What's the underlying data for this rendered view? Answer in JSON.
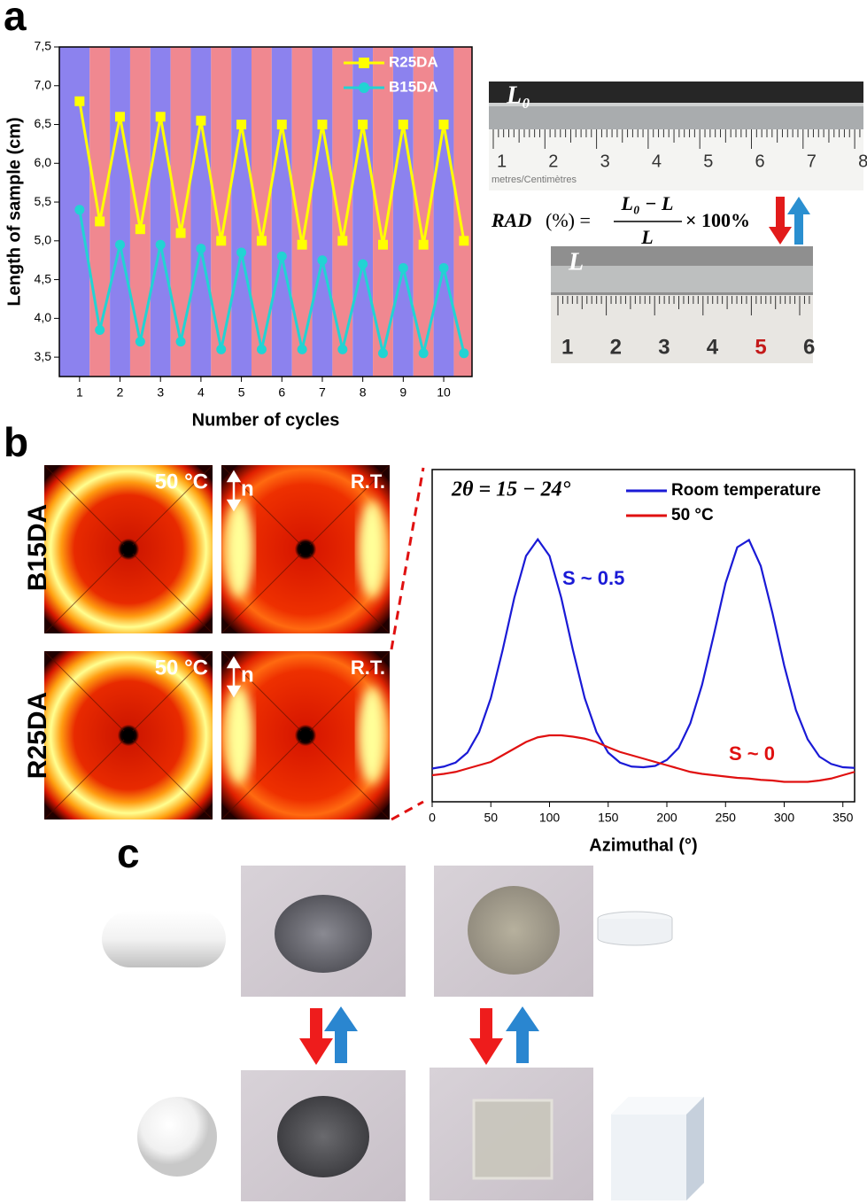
{
  "panels": {
    "a": "a",
    "b": "b",
    "c": "c"
  },
  "ruler_photos": {
    "top_label": "L₀",
    "bottom_label": "L",
    "top_ruler_caption": "metres/Centimètres",
    "top_ruler_numbers": [
      "1",
      "2",
      "3",
      "4",
      "5",
      "6",
      "7",
      "8"
    ],
    "bottom_ruler_numbers": [
      "1",
      "2",
      "3",
      "4",
      "5",
      "6"
    ]
  },
  "formula": {
    "lhs": "RAD",
    "unit": "(%) =",
    "numerator": "L₀ − L",
    "denominator": "L",
    "factor": "× 100%"
  },
  "diffraction": {
    "rows": [
      "B15DA",
      "R25DA"
    ],
    "hot_label": "50 °C",
    "cold_label": "R.T.",
    "director": "n"
  },
  "chart_data": [
    {
      "type": "line",
      "xlabel": "Number of cycles",
      "ylabel": "Length of sample (cm)",
      "x": [
        1,
        1.5,
        2,
        2.5,
        3,
        3.5,
        4,
        4.5,
        5,
        5.5,
        6,
        6.5,
        7,
        7.5,
        8,
        8.5,
        9,
        9.5,
        10,
        10.5
      ],
      "series": [
        {
          "name": "R25DA",
          "color": "#ffff00",
          "marker": "square",
          "values": [
            6.8,
            5.25,
            6.6,
            5.15,
            6.6,
            5.1,
            6.55,
            5.0,
            6.5,
            5.0,
            6.5,
            4.95,
            6.5,
            5.0,
            6.5,
            4.95,
            6.5,
            4.95,
            6.5,
            5.0
          ]
        },
        {
          "name": "B15DA",
          "color": "#22d3d3",
          "marker": "circle",
          "values": [
            5.4,
            3.85,
            4.95,
            3.7,
            4.95,
            3.7,
            4.9,
            3.6,
            4.85,
            3.6,
            4.8,
            3.6,
            4.75,
            3.6,
            4.7,
            3.55,
            4.65,
            3.55,
            4.65,
            3.55
          ]
        }
      ],
      "band_colors": [
        "#8c82ee",
        "#f08890"
      ],
      "xlim": [
        0.5,
        10.7
      ],
      "xticks": [
        1,
        2,
        3,
        4,
        5,
        6,
        7,
        8,
        9,
        10
      ],
      "ylim": [
        3.25,
        7.5
      ],
      "yticks": [
        {
          "value": 3.5,
          "label": "3,5"
        },
        {
          "value": 4,
          "label": "4,0"
        },
        {
          "value": 4.5,
          "label": "4,5"
        },
        {
          "value": 5,
          "label": "5,0"
        },
        {
          "value": 5.5,
          "label": "5,5"
        },
        {
          "value": 6,
          "label": "6,0"
        },
        {
          "value": 6.5,
          "label": "6,5"
        },
        {
          "value": 7,
          "label": "7,0"
        },
        {
          "value": 7.5,
          "label": "7,5"
        }
      ],
      "legend": "upper right"
    },
    {
      "type": "line",
      "title": "2θ = 15 − 24°",
      "xlabel": "Azimuthal (°)",
      "x": [
        0,
        10,
        20,
        30,
        40,
        50,
        60,
        70,
        80,
        90,
        100,
        110,
        120,
        130,
        140,
        150,
        160,
        170,
        180,
        190,
        200,
        210,
        220,
        230,
        240,
        250,
        260,
        270,
        280,
        290,
        300,
        310,
        320,
        330,
        340,
        350,
        360
      ],
      "series": [
        {
          "name": "Room temperature",
          "color": "#1a1ad6",
          "values": [
            0.5,
            0.53,
            0.59,
            0.74,
            1.05,
            1.56,
            2.28,
            3.07,
            3.7,
            3.95,
            3.7,
            3.07,
            2.28,
            1.56,
            1.05,
            0.74,
            0.59,
            0.53,
            0.52,
            0.54,
            0.63,
            0.81,
            1.18,
            1.76,
            2.51,
            3.29,
            3.83,
            3.94,
            3.55,
            2.84,
            2.05,
            1.38,
            0.94,
            0.68,
            0.57,
            0.52,
            0.51
          ]
        },
        {
          "name": "50 °C",
          "color": "#e01010",
          "values": [
            0.4,
            0.42,
            0.45,
            0.5,
            0.55,
            0.6,
            0.7,
            0.8,
            0.9,
            0.97,
            1.0,
            1.0,
            0.98,
            0.95,
            0.9,
            0.82,
            0.75,
            0.7,
            0.65,
            0.6,
            0.55,
            0.5,
            0.45,
            0.42,
            0.4,
            0.38,
            0.36,
            0.35,
            0.33,
            0.32,
            0.3,
            0.3,
            0.3,
            0.32,
            0.35,
            0.4,
            0.45
          ]
        }
      ],
      "annotations": [
        "S ~ 0.5",
        "S ~ 0"
      ],
      "xlim": [
        0,
        360
      ],
      "xticks": [
        0,
        50,
        100,
        150,
        200,
        250,
        300,
        350
      ],
      "ylim": [
        0,
        5
      ],
      "legend": "upper right"
    }
  ]
}
